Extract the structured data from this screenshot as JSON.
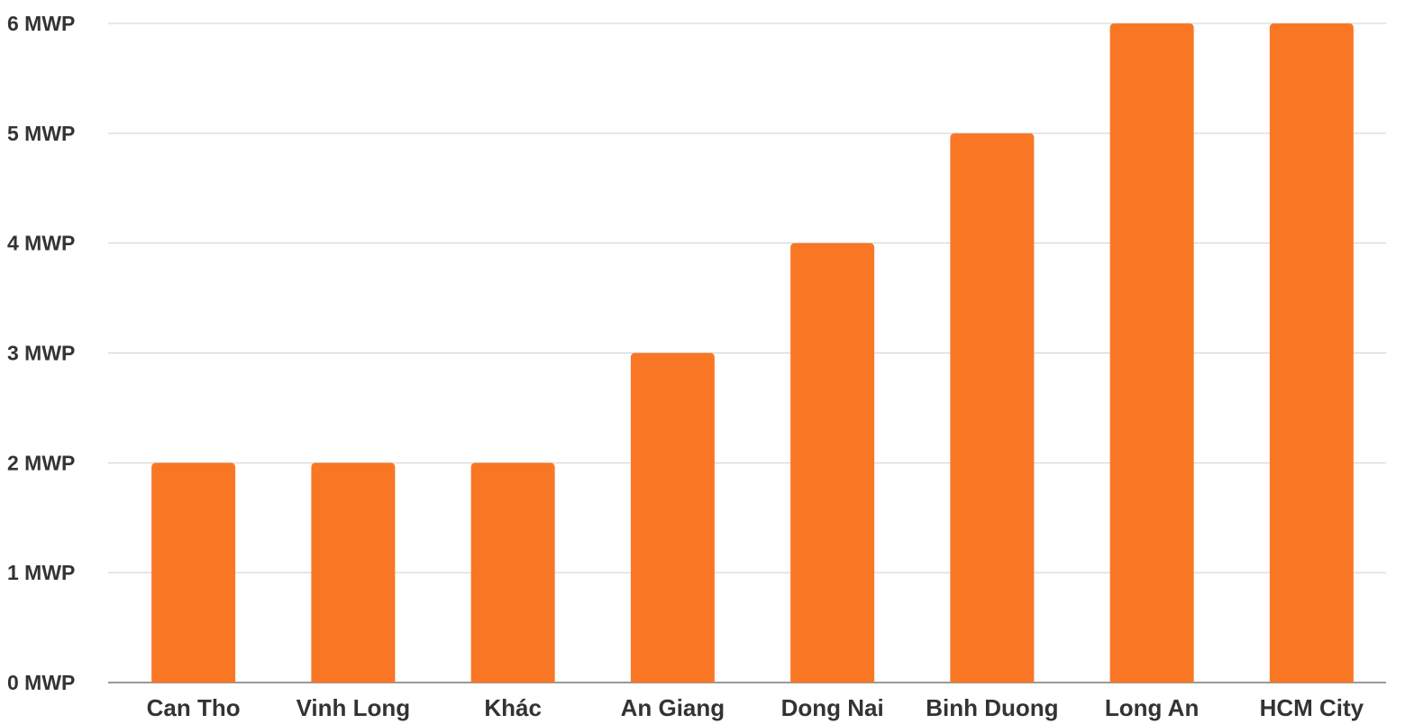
{
  "chart_data": {
    "type": "bar",
    "title": "",
    "xlabel": "",
    "ylabel": "",
    "categories": [
      "Can Tho",
      "Vinh Long",
      "Khác",
      "An Giang",
      "Dong Nai",
      "Binh Duong",
      "Long An",
      "HCM City"
    ],
    "values": [
      2,
      2,
      2,
      3,
      4,
      5,
      6,
      6
    ],
    "unit": "MWP",
    "ylim": [
      0,
      6
    ],
    "yticks": [
      {
        "value": 0,
        "label": "0 MWP"
      },
      {
        "value": 1,
        "label": "1 MWP"
      },
      {
        "value": 2,
        "label": "2 MWP"
      },
      {
        "value": 3,
        "label": "3 MWP"
      },
      {
        "value": 4,
        "label": "4 MWP"
      },
      {
        "value": 5,
        "label": "5 MWP"
      },
      {
        "value": 6,
        "label": "6 MWP"
      }
    ],
    "grid": true,
    "legend": "none",
    "bar_color": "#f97724"
  }
}
